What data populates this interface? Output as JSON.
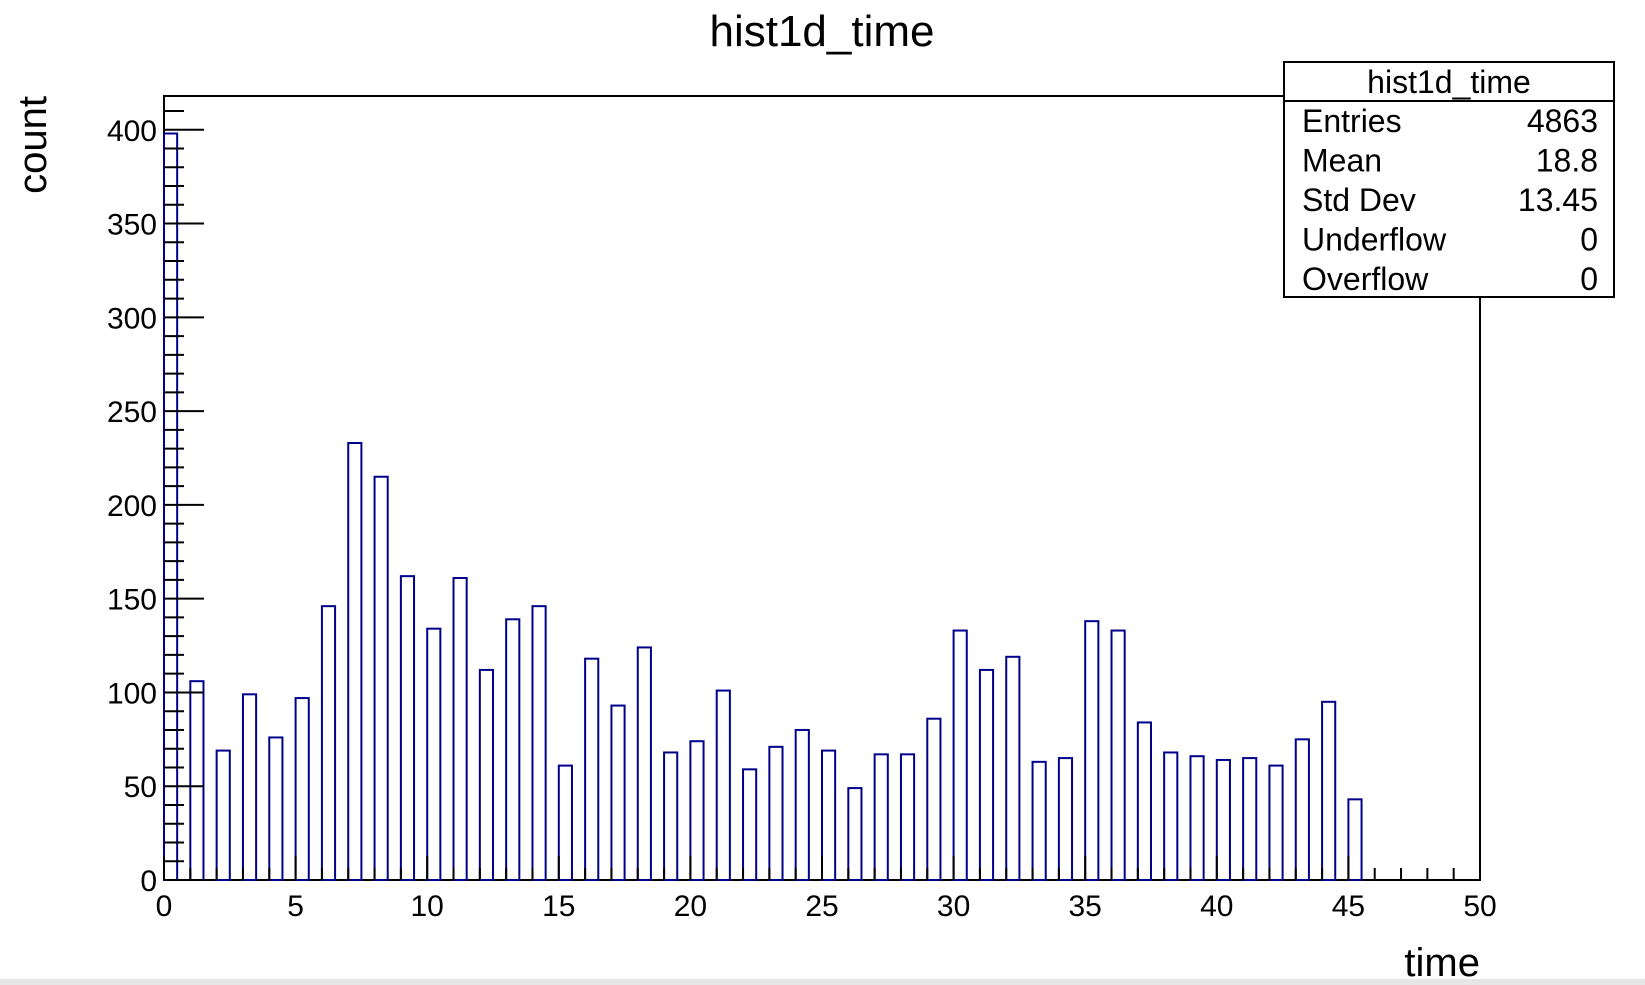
{
  "chart_data": {
    "type": "bar",
    "title": "hist1d_time",
    "xlabel": "time",
    "ylabel": "count",
    "xlim": [
      0,
      50
    ],
    "ylim": [
      0,
      418
    ],
    "bin_width": 0.5,
    "bar_color": "#00008b",
    "x_ticks": [
      "0",
      "5",
      "10",
      "15",
      "20",
      "25",
      "30",
      "35",
      "40",
      "45",
      "50"
    ],
    "y_ticks": [
      "0",
      "50",
      "100",
      "150",
      "200",
      "250",
      "300",
      "350",
      "400"
    ],
    "bins": [
      {
        "x": 0,
        "y": 398
      },
      {
        "x": 1,
        "y": 106
      },
      {
        "x": 2,
        "y": 69
      },
      {
        "x": 3,
        "y": 99
      },
      {
        "x": 4,
        "y": 76
      },
      {
        "x": 5,
        "y": 97
      },
      {
        "x": 6,
        "y": 146
      },
      {
        "x": 7,
        "y": 233
      },
      {
        "x": 8,
        "y": 215
      },
      {
        "x": 9,
        "y": 162
      },
      {
        "x": 10,
        "y": 134
      },
      {
        "x": 11,
        "y": 161
      },
      {
        "x": 12,
        "y": 112
      },
      {
        "x": 13,
        "y": 139
      },
      {
        "x": 14,
        "y": 146
      },
      {
        "x": 15,
        "y": 61
      },
      {
        "x": 16,
        "y": 118
      },
      {
        "x": 17,
        "y": 93
      },
      {
        "x": 18,
        "y": 124
      },
      {
        "x": 19,
        "y": 68
      },
      {
        "x": 20,
        "y": 74
      },
      {
        "x": 21,
        "y": 101
      },
      {
        "x": 22,
        "y": 59
      },
      {
        "x": 23,
        "y": 71
      },
      {
        "x": 24,
        "y": 80
      },
      {
        "x": 25,
        "y": 69
      },
      {
        "x": 26,
        "y": 49
      },
      {
        "x": 27,
        "y": 67
      },
      {
        "x": 28,
        "y": 67
      },
      {
        "x": 29,
        "y": 86
      },
      {
        "x": 30,
        "y": 133
      },
      {
        "x": 31,
        "y": 112
      },
      {
        "x": 32,
        "y": 119
      },
      {
        "x": 33,
        "y": 63
      },
      {
        "x": 34,
        "y": 65
      },
      {
        "x": 35,
        "y": 138
      },
      {
        "x": 36,
        "y": 133
      },
      {
        "x": 37,
        "y": 84
      },
      {
        "x": 38,
        "y": 68
      },
      {
        "x": 39,
        "y": 66
      },
      {
        "x": 40,
        "y": 64
      },
      {
        "x": 41,
        "y": 65
      },
      {
        "x": 42,
        "y": 61
      },
      {
        "x": 43,
        "y": 75
      },
      {
        "x": 44,
        "y": 95
      },
      {
        "x": 45,
        "y": 43
      }
    ],
    "stats_box": {
      "title": "hist1d_time",
      "rows": [
        {
          "label": "Entries",
          "value": "4863"
        },
        {
          "label": "Mean",
          "value": "18.8"
        },
        {
          "label": "Std Dev",
          "value": "13.45"
        },
        {
          "label": "Underflow",
          "value": "0"
        },
        {
          "label": "Overflow",
          "value": "0"
        }
      ]
    }
  }
}
